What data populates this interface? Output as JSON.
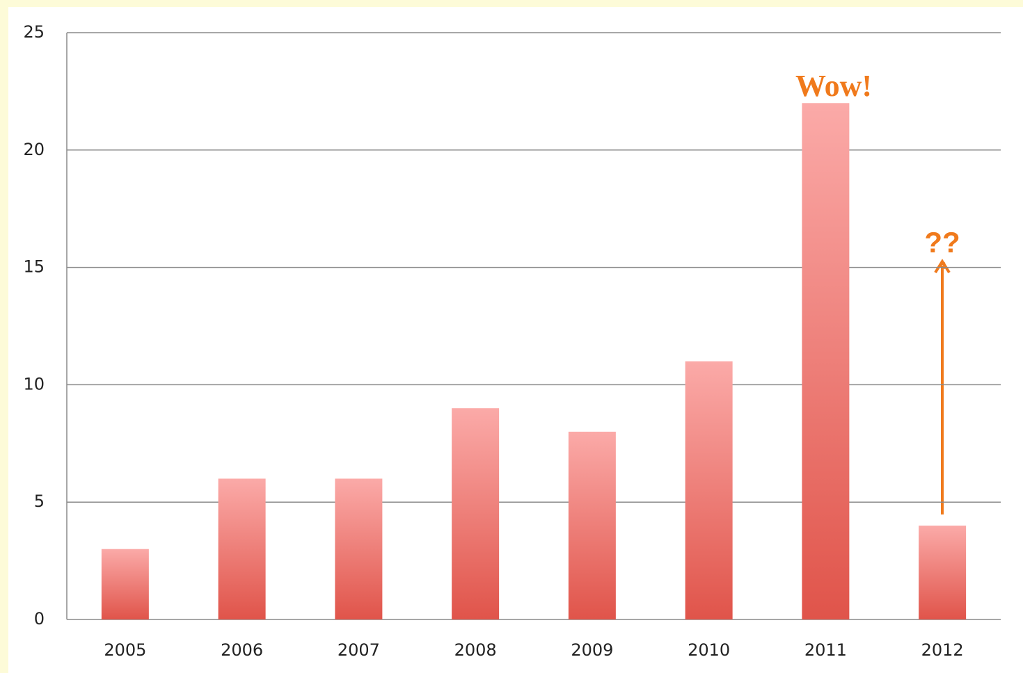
{
  "chart_data": {
    "type": "bar",
    "categories": [
      "2005",
      "2006",
      "2007",
      "2008",
      "2009",
      "2010",
      "2011",
      "2012"
    ],
    "values": [
      3,
      6,
      6,
      9,
      8,
      11,
      22,
      4
    ],
    "color": "#e0544a",
    "ylim": [
      0,
      25
    ],
    "yticks": [
      0,
      5,
      10,
      15,
      20,
      25
    ],
    "grid": true,
    "annotations": [
      "Wow!",
      "??"
    ]
  }
}
